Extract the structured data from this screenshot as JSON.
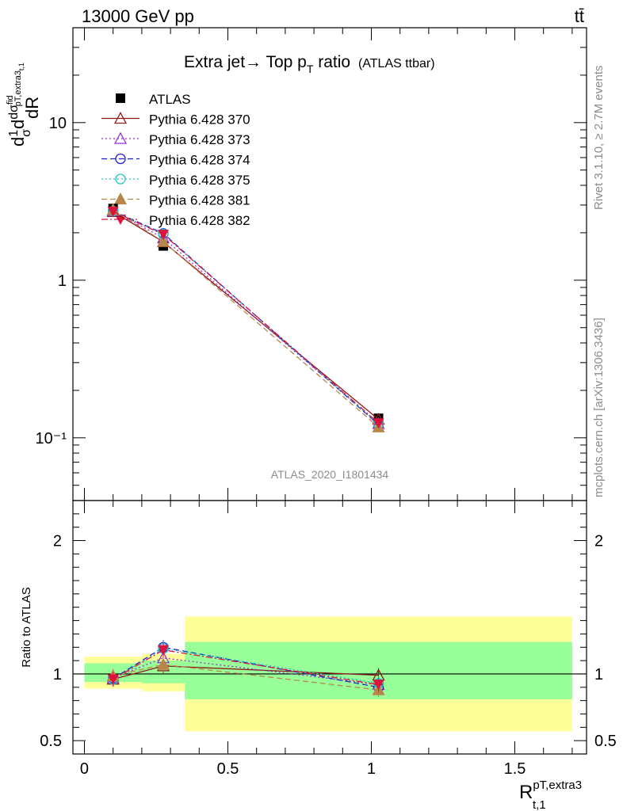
{
  "header": {
    "left": "13000 GeV pp",
    "right": "tt̄"
  },
  "title": {
    "main": "Extra jet→ Top p",
    "sub": "T",
    "tail": " ratio",
    "small": "(ATLAS ttbar)"
  },
  "side_labels": {
    "rivet": "Rivet 3.1.10, ≥ 2.7M events",
    "mcplots": "mcplots.cern.ch [arXiv:1306.3436]"
  },
  "watermark": "ATLAS_2020_I1801434",
  "axes": {
    "ylabel_top": "d¹⁄σ dσᶠⁱᵈ / dR",
    "ylabel_ratio": "Ratio to ATLAS",
    "xlabel_main": "R",
    "xlabel_sup": "pT,extra3",
    "xlabel_sub": "t,1"
  },
  "chart_data": [
    {
      "type": "line",
      "panel": "main",
      "yscale": "log",
      "xlim": [
        -0.04,
        1.75
      ],
      "ylim": [
        0.04,
        40
      ],
      "ytick_labels": [
        "10⁻¹",
        "1",
        "10"
      ],
      "ytick_values": [
        0.1,
        1,
        10
      ],
      "x": [
        0.1,
        0.275,
        1.025
      ],
      "series": [
        {
          "name": "ATLAS",
          "marker": "square-filled",
          "color": "#000000",
          "dash": "none",
          "values": [
            2.85,
            1.65,
            0.133
          ]
        },
        {
          "name": "Pythia 6.428 370",
          "marker": "triangle-open",
          "color": "#8b1a1a",
          "dash": "solid",
          "values": [
            2.72,
            1.75,
            0.131
          ]
        },
        {
          "name": "Pythia 6.428 373",
          "marker": "triangle-open",
          "color": "#9932cc",
          "dash": "dotted",
          "values": [
            2.76,
            1.85,
            0.123
          ]
        },
        {
          "name": "Pythia 6.428 374",
          "marker": "circle-open",
          "color": "#2222cc",
          "dash": "dashed",
          "values": [
            2.75,
            1.98,
            0.121
          ]
        },
        {
          "name": "Pythia 6.428 375",
          "marker": "circle-open",
          "color": "#1ec8c8",
          "dash": "dotted",
          "values": [
            2.74,
            1.96,
            0.122
          ]
        },
        {
          "name": "Pythia 6.428 381",
          "marker": "triangle-filled",
          "color": "#b8864b",
          "dash": "dashed",
          "values": [
            2.8,
            1.76,
            0.117
          ]
        },
        {
          "name": "Pythia 6.428 382",
          "marker": "triangle-down-filled",
          "color": "#dc143c",
          "dash": "dashdot",
          "values": [
            2.73,
            1.95,
            0.124
          ]
        }
      ]
    },
    {
      "type": "line",
      "panel": "ratio",
      "xlim": [
        -0.04,
        1.75
      ],
      "ylim": [
        0.4,
        2.3
      ],
      "xtick_labels": [
        "0",
        "0.5",
        "1",
        "1.5"
      ],
      "xtick_values": [
        0,
        0.5,
        1,
        1.5
      ],
      "ytick_labels": [
        "0.5",
        "1",
        "2"
      ],
      "ytick_values": [
        0.5,
        1,
        2
      ],
      "bands": [
        {
          "xlo": 0.0,
          "xhi": 0.2,
          "yellow": [
            0.89,
            1.13
          ],
          "green": [
            0.94,
            1.08
          ]
        },
        {
          "xlo": 0.2,
          "xhi": 0.35,
          "yellow": [
            0.87,
            1.15
          ],
          "green": [
            0.93,
            1.1
          ]
        },
        {
          "xlo": 0.35,
          "xhi": 1.7,
          "yellow": [
            0.57,
            1.43
          ],
          "green": [
            0.81,
            1.24
          ]
        }
      ],
      "x": [
        0.1,
        0.275,
        1.025
      ],
      "series": [
        {
          "name": "Pythia 6.428 370",
          "values": [
            0.96,
            1.06,
            0.99
          ]
        },
        {
          "name": "Pythia 6.428 373",
          "values": [
            0.97,
            1.12,
            0.92
          ]
        },
        {
          "name": "Pythia 6.428 374",
          "values": [
            0.965,
            1.2,
            0.9
          ]
        },
        {
          "name": "Pythia 6.428 375",
          "values": [
            0.96,
            1.19,
            0.93
          ]
        },
        {
          "name": "Pythia 6.428 381",
          "values": [
            0.985,
            1.07,
            0.88
          ]
        },
        {
          "name": "Pythia 6.428 382",
          "values": [
            0.96,
            1.18,
            0.92
          ]
        }
      ]
    }
  ]
}
